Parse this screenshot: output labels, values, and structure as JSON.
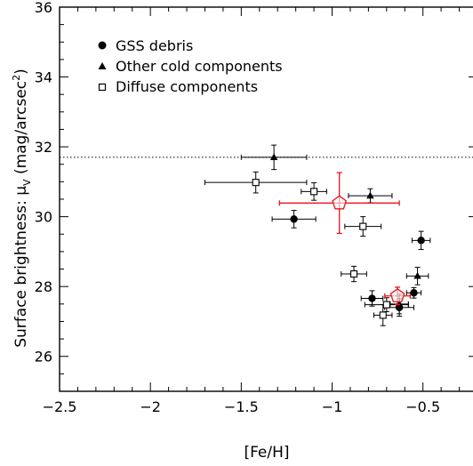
{
  "chart_data": {
    "type": "scatter",
    "xlabel": "[Fe/H]",
    "ylabel": "Surface brightness: μ_V (mag/arcsec²)",
    "ylabel_parts": {
      "main": "Surface brightness: μ",
      "sub": "V",
      "unit_open": " (mag/arcsec",
      "unit_sup": "2",
      "unit_close": ")"
    },
    "xlim": [
      -2.5,
      -0.2
    ],
    "ylim": [
      25,
      36
    ],
    "x_ticks": [
      -2.5,
      -2,
      -1.5,
      -1,
      -0.5
    ],
    "x_tick_labels": [
      "−2.5",
      "−2",
      "−1.5",
      "−1",
      "−0.5"
    ],
    "y_ticks": [
      26,
      28,
      30,
      32,
      34,
      36
    ],
    "y_tick_labels": [
      "26",
      "28",
      "30",
      "32",
      "34",
      "36"
    ],
    "hline": {
      "y": 31.7,
      "style": "dotted"
    },
    "legend": {
      "placement": "top-left",
      "entries": [
        {
          "label": "GSS debris",
          "marker": "filled-circle"
        },
        {
          "label": "Other cold components",
          "marker": "filled-triangle"
        },
        {
          "label": "Diffuse components",
          "marker": "open-square"
        }
      ]
    },
    "series": [
      {
        "name": "GSS debris",
        "marker": "filled-circle",
        "color": "#000000",
        "points": [
          {
            "x": -1.21,
            "y": 29.93,
            "xerr": 0.12,
            "yerr": 0.25
          },
          {
            "x": -0.51,
            "y": 29.32,
            "xerr": 0.05,
            "yerr": 0.26
          },
          {
            "x": -0.78,
            "y": 27.66,
            "xerr": 0.06,
            "yerr": 0.22
          },
          {
            "x": -0.63,
            "y": 27.4,
            "xerr": 0.08,
            "yerr": 0.25
          },
          {
            "x": -0.55,
            "y": 27.82,
            "xerr": 0.04,
            "yerr": 0.15
          }
        ]
      },
      {
        "name": "Other cold components",
        "marker": "filled-triangle",
        "color": "#000000",
        "points": [
          {
            "x": -1.32,
            "y": 31.7,
            "xerr": 0.18,
            "yerr": 0.35
          },
          {
            "x": -0.79,
            "y": 30.6,
            "xerr": 0.12,
            "yerr": 0.2
          },
          {
            "x": -0.53,
            "y": 28.3,
            "xerr": 0.06,
            "yerr": 0.25
          },
          {
            "x": -0.63,
            "y": 27.5,
            "xerr": 0.05,
            "yerr": 0.28
          }
        ]
      },
      {
        "name": "Diffuse components",
        "marker": "open-square",
        "color": "#000000",
        "points": [
          {
            "x": -1.42,
            "y": 30.98,
            "xerr": 0.28,
            "yerr": 0.3
          },
          {
            "x": -1.1,
            "y": 30.72,
            "xerr": 0.07,
            "yerr": 0.25
          },
          {
            "x": -0.83,
            "y": 29.72,
            "xerr": 0.1,
            "yerr": 0.28
          },
          {
            "x": -0.88,
            "y": 28.36,
            "xerr": 0.07,
            "yerr": 0.22
          },
          {
            "x": -0.72,
            "y": 27.18,
            "xerr": 0.05,
            "yerr": 0.3
          },
          {
            "x": -0.7,
            "y": 27.48,
            "xerr": 0.12,
            "yerr": 0.2
          }
        ]
      },
      {
        "marker": "open-pentagon",
        "color": "#e8141c",
        "points": [
          {
            "x": -0.96,
            "y": 30.39,
            "xerr": 0.33,
            "yerr": 0.87
          },
          {
            "x": -0.64,
            "y": 27.73,
            "xerr": 0.07,
            "yerr": 0.25
          }
        ]
      }
    ]
  }
}
